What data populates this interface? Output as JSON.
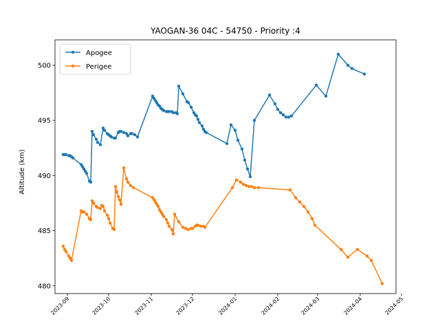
{
  "chart_data": {
    "type": "line",
    "title": "YAOGAN-36 04C - 54750 - Priority :4",
    "xlabel": "",
    "ylabel": "Altitude (km)",
    "ylim": [
      479.3,
      502.3
    ],
    "xlim": [
      "2023-08-23",
      "2024-04-27"
    ],
    "yticks": [
      480,
      485,
      490,
      495,
      500
    ],
    "xticks": [
      "2023-09",
      "2023-10",
      "2023-11",
      "2023-12",
      "2024-01",
      "2024-02",
      "2024-03",
      "2024-04",
      "2024-05"
    ],
    "grid": false,
    "legend_position": "top-left",
    "series": [
      {
        "name": "Apogee",
        "color": "#1f77b4",
        "points": [
          [
            "2023-08-29",
            491.9
          ],
          [
            "2023-08-30",
            491.9
          ],
          [
            "2023-08-31",
            491.9
          ],
          [
            "2023-09-02",
            491.8
          ],
          [
            "2023-09-03",
            491.8
          ],
          [
            "2023-09-04",
            491.7
          ],
          [
            "2023-09-05",
            491.6
          ],
          [
            "2023-09-11",
            491.0
          ],
          [
            "2023-09-12",
            490.8
          ],
          [
            "2023-09-13",
            490.6
          ],
          [
            "2023-09-14",
            490.4
          ],
          [
            "2023-09-15",
            490.2
          ],
          [
            "2023-09-17",
            489.5
          ],
          [
            "2023-09-18",
            489.4
          ],
          [
            "2023-09-19",
            494.0
          ],
          [
            "2023-09-20",
            493.7
          ],
          [
            "2023-09-22",
            493.3
          ],
          [
            "2023-09-23",
            493.0
          ],
          [
            "2023-09-25",
            492.8
          ],
          [
            "2023-09-27",
            494.3
          ],
          [
            "2023-09-28",
            494.1
          ],
          [
            "2023-09-30",
            493.8
          ],
          [
            "2023-10-01",
            493.7
          ],
          [
            "2023-10-02",
            493.6
          ],
          [
            "2023-10-03",
            493.5
          ],
          [
            "2023-10-05",
            493.4
          ],
          [
            "2023-10-06",
            493.4
          ],
          [
            "2023-10-08",
            493.9
          ],
          [
            "2023-10-09",
            494.0
          ],
          [
            "2023-10-10",
            494.0
          ],
          [
            "2023-10-12",
            493.9
          ],
          [
            "2023-10-14",
            493.8
          ],
          [
            "2023-10-15",
            493.6
          ],
          [
            "2023-10-17",
            493.8
          ],
          [
            "2023-10-18",
            493.8
          ],
          [
            "2023-10-20",
            493.7
          ],
          [
            "2023-10-22",
            493.5
          ],
          [
            "2023-11-02",
            497.2
          ],
          [
            "2023-11-03",
            497.0
          ],
          [
            "2023-11-04",
            496.8
          ],
          [
            "2023-11-05",
            496.6
          ],
          [
            "2023-11-06",
            496.4
          ],
          [
            "2023-11-07",
            496.3
          ],
          [
            "2023-11-08",
            496.1
          ],
          [
            "2023-11-09",
            496.0
          ],
          [
            "2023-11-10",
            495.9
          ],
          [
            "2023-11-12",
            495.8
          ],
          [
            "2023-11-13",
            495.8
          ],
          [
            "2023-11-14",
            495.8
          ],
          [
            "2023-11-16",
            495.8
          ],
          [
            "2023-11-17",
            495.7
          ],
          [
            "2023-11-19",
            495.7
          ],
          [
            "2023-11-20",
            495.6
          ],
          [
            "2023-11-21",
            498.1
          ],
          [
            "2023-11-24",
            497.4
          ],
          [
            "2023-11-27",
            496.7
          ],
          [
            "2023-11-28",
            496.6
          ],
          [
            "2023-11-30",
            496.2
          ],
          [
            "2023-12-02",
            495.7
          ],
          [
            "2023-12-03",
            495.5
          ],
          [
            "2023-12-04",
            495.4
          ],
          [
            "2023-12-05",
            495.1
          ],
          [
            "2023-12-06",
            494.8
          ],
          [
            "2023-12-08",
            494.5
          ],
          [
            "2023-12-09",
            494.2
          ],
          [
            "2023-12-10",
            494.0
          ],
          [
            "2023-12-11",
            493.9
          ],
          [
            "2023-12-26",
            492.9
          ],
          [
            "2023-12-29",
            494.6
          ],
          [
            "2024-01-01",
            494.1
          ],
          [
            "2024-01-03",
            493.2
          ],
          [
            "2024-01-06",
            492.4
          ],
          [
            "2024-01-08",
            491.4
          ],
          [
            "2024-01-10",
            490.6
          ],
          [
            "2024-01-12",
            489.9
          ],
          [
            "2024-01-15",
            495.0
          ],
          [
            "2024-01-26",
            497.3
          ],
          [
            "2024-01-30",
            496.5
          ],
          [
            "2024-02-01",
            496.0
          ],
          [
            "2024-02-03",
            495.7
          ],
          [
            "2024-02-05",
            495.5
          ],
          [
            "2024-02-07",
            495.3
          ],
          [
            "2024-02-09",
            495.3
          ],
          [
            "2024-02-11",
            495.4
          ],
          [
            "2024-02-29",
            498.2
          ],
          [
            "2024-03-07",
            497.2
          ],
          [
            "2024-03-16",
            501.0
          ],
          [
            "2024-03-23",
            500.0
          ],
          [
            "2024-03-26",
            499.7
          ],
          [
            "2024-04-04",
            499.2
          ]
        ]
      },
      {
        "name": "Perigee",
        "color": "#ff7f0e",
        "points": [
          [
            "2023-08-29",
            483.6
          ],
          [
            "2023-08-30",
            483.3
          ],
          [
            "2023-08-31",
            483.1
          ],
          [
            "2023-09-02",
            482.7
          ],
          [
            "2023-09-03",
            482.5
          ],
          [
            "2023-09-04",
            482.3
          ],
          [
            "2023-09-11",
            486.8
          ],
          [
            "2023-09-12",
            486.7
          ],
          [
            "2023-09-13",
            486.7
          ],
          [
            "2023-09-15",
            486.5
          ],
          [
            "2023-09-17",
            486.1
          ],
          [
            "2023-09-18",
            486.0
          ],
          [
            "2023-09-19",
            487.7
          ],
          [
            "2023-09-20",
            487.5
          ],
          [
            "2023-09-22",
            487.2
          ],
          [
            "2023-09-23",
            487.1
          ],
          [
            "2023-09-25",
            487.0
          ],
          [
            "2023-09-26",
            487.3
          ],
          [
            "2023-09-27",
            487.2
          ],
          [
            "2023-09-28",
            486.8
          ],
          [
            "2023-09-30",
            486.4
          ],
          [
            "2023-10-01",
            486.1
          ],
          [
            "2023-10-02",
            485.7
          ],
          [
            "2023-10-04",
            485.2
          ],
          [
            "2023-10-05",
            485.1
          ],
          [
            "2023-10-06",
            489.0
          ],
          [
            "2023-10-07",
            488.5
          ],
          [
            "2023-10-08",
            488.1
          ],
          [
            "2023-10-09",
            487.8
          ],
          [
            "2023-10-10",
            487.4
          ],
          [
            "2023-10-12",
            490.7
          ],
          [
            "2023-10-14",
            489.7
          ],
          [
            "2023-10-15",
            489.4
          ],
          [
            "2023-10-17",
            489.1
          ],
          [
            "2023-10-19",
            488.9
          ],
          [
            "2023-11-02",
            488.0
          ],
          [
            "2023-11-03",
            487.8
          ],
          [
            "2023-11-04",
            487.6
          ],
          [
            "2023-11-05",
            487.4
          ],
          [
            "2023-11-06",
            487.2
          ],
          [
            "2023-11-07",
            486.9
          ],
          [
            "2023-11-08",
            486.7
          ],
          [
            "2023-11-09",
            486.5
          ],
          [
            "2023-11-10",
            486.3
          ],
          [
            "2023-11-12",
            486.0
          ],
          [
            "2023-11-13",
            485.7
          ],
          [
            "2023-11-14",
            485.4
          ],
          [
            "2023-11-16",
            485.1
          ],
          [
            "2023-11-17",
            484.7
          ],
          [
            "2023-11-18",
            486.5
          ],
          [
            "2023-11-21",
            485.8
          ],
          [
            "2023-11-24",
            485.3
          ],
          [
            "2023-11-26",
            485.2
          ],
          [
            "2023-11-28",
            485.1
          ],
          [
            "2023-11-30",
            485.2
          ],
          [
            "2023-12-01",
            485.2
          ],
          [
            "2023-12-03",
            485.4
          ],
          [
            "2023-12-04",
            485.5
          ],
          [
            "2023-12-05",
            485.5
          ],
          [
            "2023-12-07",
            485.4
          ],
          [
            "2023-12-09",
            485.4
          ],
          [
            "2023-12-10",
            485.3
          ],
          [
            "2023-12-30",
            488.9
          ],
          [
            "2024-01-02",
            489.6
          ],
          [
            "2024-01-05",
            489.4
          ],
          [
            "2024-01-07",
            489.2
          ],
          [
            "2024-01-09",
            489.1
          ],
          [
            "2024-01-11",
            489.0
          ],
          [
            "2024-01-13",
            489.0
          ],
          [
            "2024-01-15",
            488.9
          ],
          [
            "2024-01-18",
            488.9
          ],
          [
            "2024-02-10",
            488.7
          ],
          [
            "2024-02-14",
            488.0
          ],
          [
            "2024-02-17",
            487.6
          ],
          [
            "2024-02-20",
            487.2
          ],
          [
            "2024-02-23",
            486.7
          ],
          [
            "2024-02-26",
            486.1
          ],
          [
            "2024-02-28",
            485.5
          ],
          [
            "2024-03-18",
            483.3
          ],
          [
            "2024-03-23",
            482.6
          ],
          [
            "2024-03-30",
            483.3
          ],
          [
            "2024-04-06",
            482.7
          ],
          [
            "2024-04-09",
            482.3
          ],
          [
            "2024-04-17",
            480.2
          ]
        ]
      }
    ]
  }
}
